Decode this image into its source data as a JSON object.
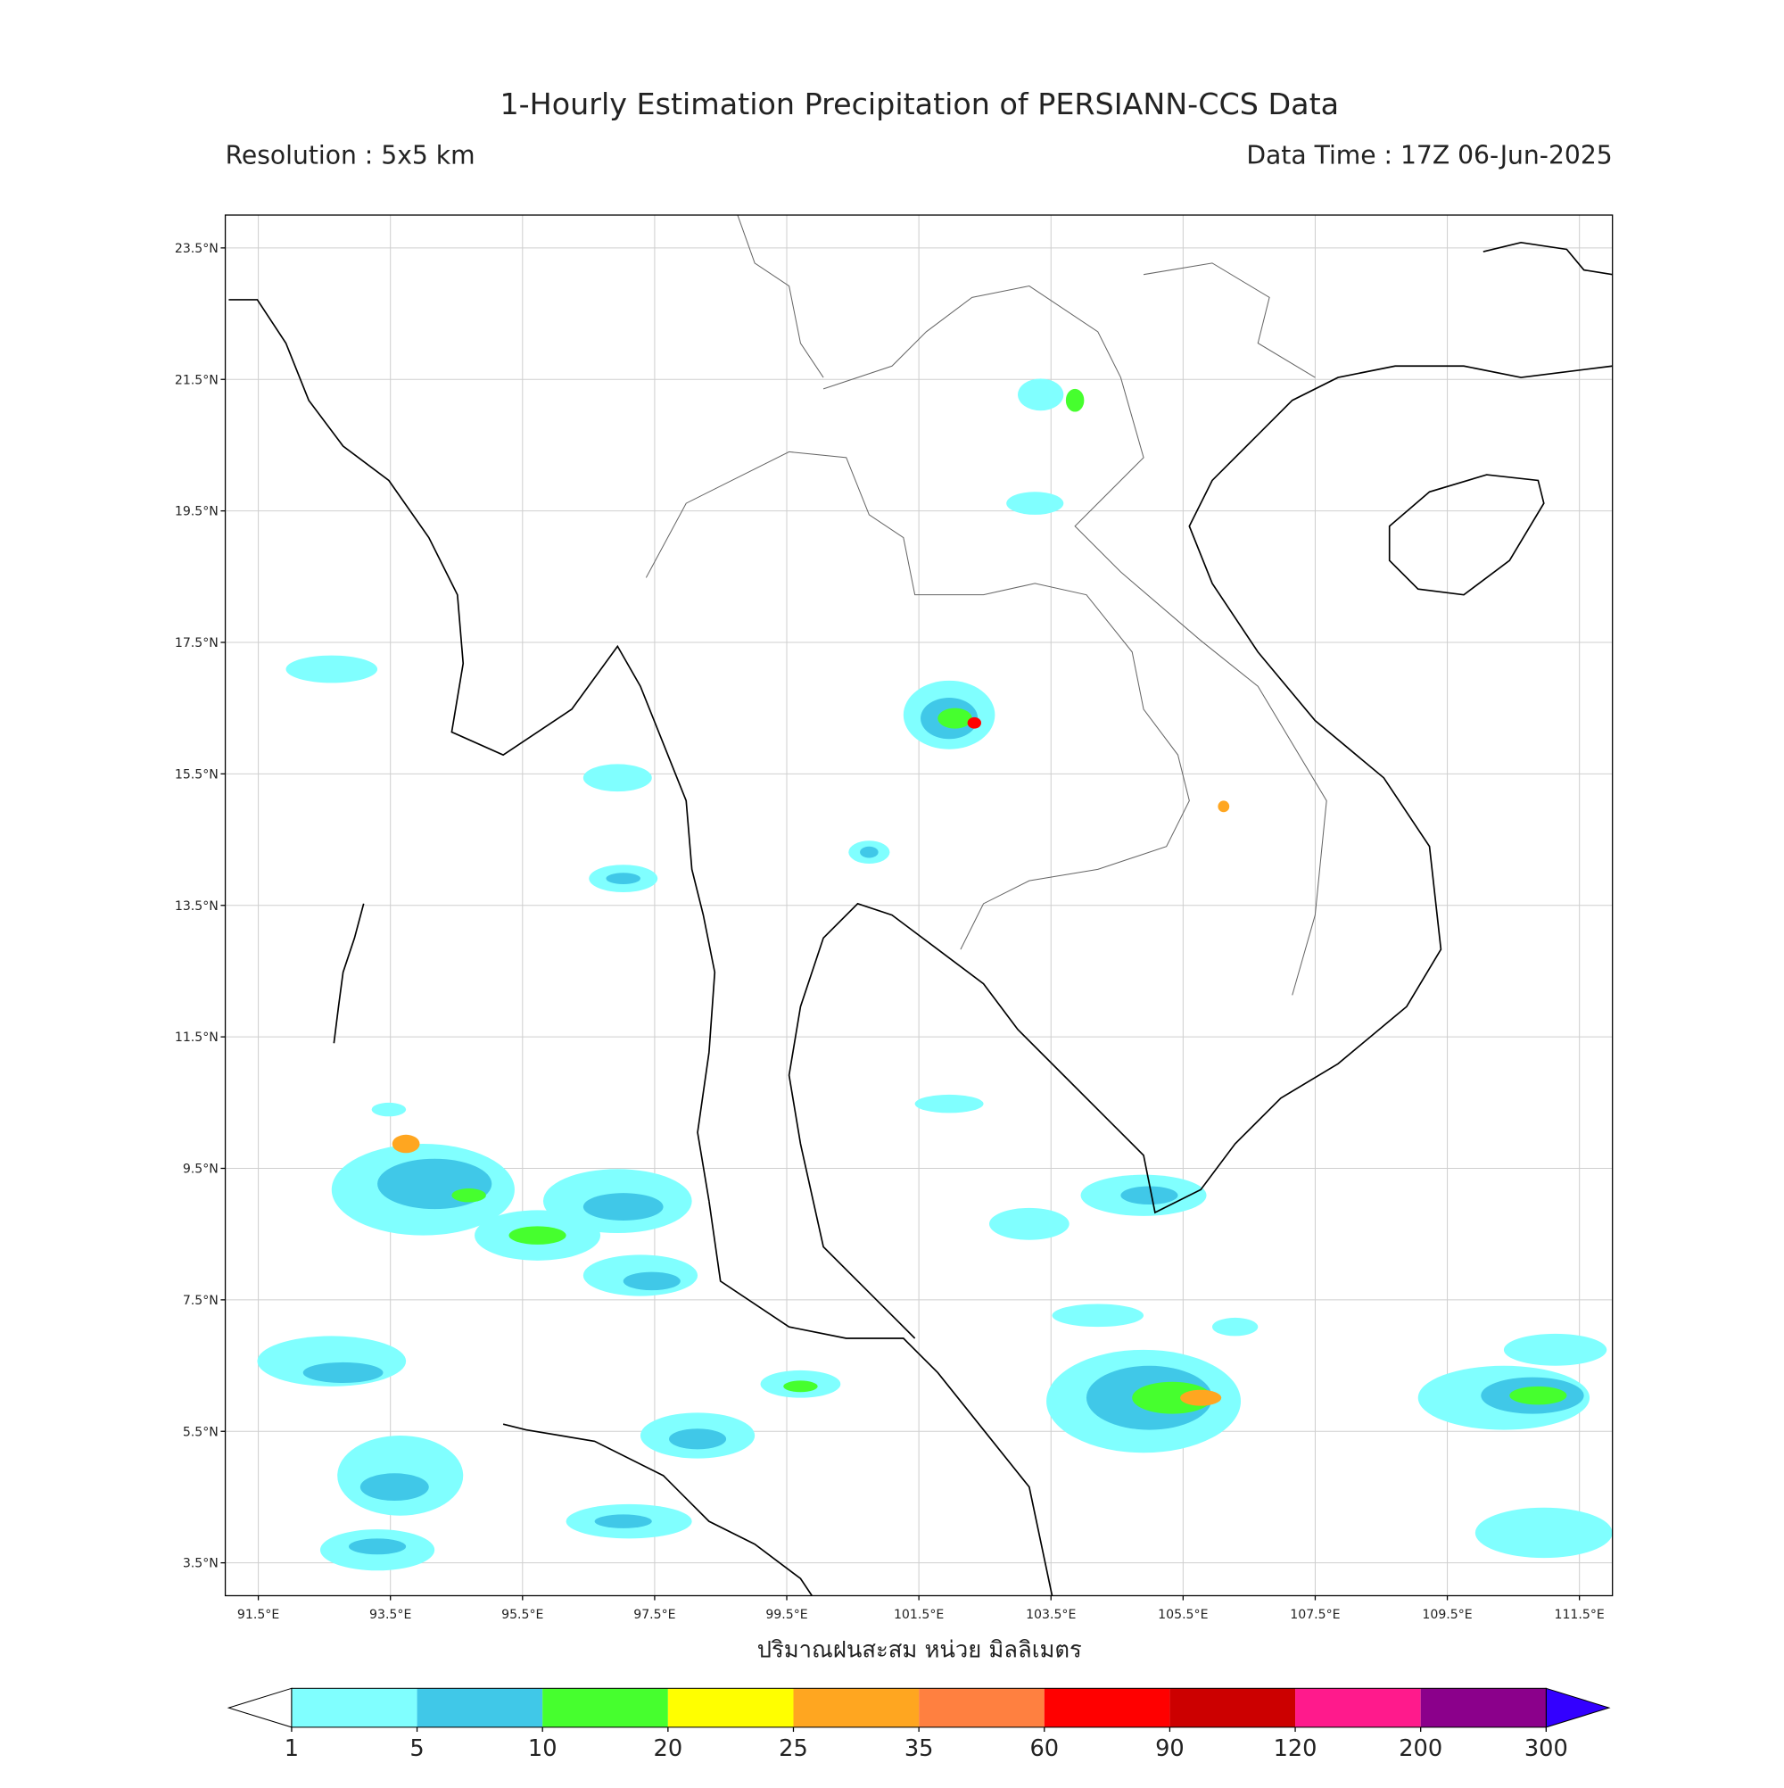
{
  "header": {
    "title": "1-Hourly Estimation Precipitation of PERSIANN-CCS Data",
    "resolution": "Resolution : 5x5 km",
    "data_time": "Data Time : 17Z 06-Jun-2025"
  },
  "map": {
    "xlim": [
      91,
      112
    ],
    "ylim": [
      3,
      24
    ],
    "xticks": [
      {
        "value": 91.5,
        "label": "91.5°E"
      },
      {
        "value": 93.5,
        "label": "93.5°E"
      },
      {
        "value": 95.5,
        "label": "95.5°E"
      },
      {
        "value": 97.5,
        "label": "97.5°E"
      },
      {
        "value": 99.5,
        "label": "99.5°E"
      },
      {
        "value": 101.5,
        "label": "101.5°E"
      },
      {
        "value": 103.5,
        "label": "103.5°E"
      },
      {
        "value": 105.5,
        "label": "105.5°E"
      },
      {
        "value": 107.5,
        "label": "107.5°E"
      },
      {
        "value": 109.5,
        "label": "109.5°E"
      },
      {
        "value": 111.5,
        "label": "111.5°E"
      }
    ],
    "yticks": [
      {
        "value": 3.5,
        "label": "3.5°N"
      },
      {
        "value": 5.5,
        "label": "5.5°N"
      },
      {
        "value": 7.5,
        "label": "7.5°N"
      },
      {
        "value": 9.5,
        "label": "9.5°N"
      },
      {
        "value": 11.5,
        "label": "11.5°N"
      },
      {
        "value": 13.5,
        "label": "13.5°N"
      },
      {
        "value": 15.5,
        "label": "15.5°N"
      },
      {
        "value": 17.5,
        "label": "17.5°N"
      },
      {
        "value": 19.5,
        "label": "19.5°N"
      },
      {
        "value": 21.5,
        "label": "21.5°N"
      },
      {
        "value": 23.5,
        "label": "23.5°N"
      }
    ],
    "grid": true,
    "xlabel": "ปริมาณฝนสะสม หน่วย มิลลิเมตร"
  },
  "colorbar": {
    "levels": [
      1,
      5,
      10,
      20,
      25,
      35,
      60,
      90,
      120,
      200,
      300
    ],
    "colors": [
      "#80ffff",
      "#40c8e8",
      "#46ff2e",
      "#ffff00",
      "#ffa620",
      "#ff8040",
      "#ff0000",
      "#cc0000",
      "#ff1a8c",
      "#8b008b"
    ],
    "under_color": "#ffffff",
    "over_color": "#3300ff"
  }
}
